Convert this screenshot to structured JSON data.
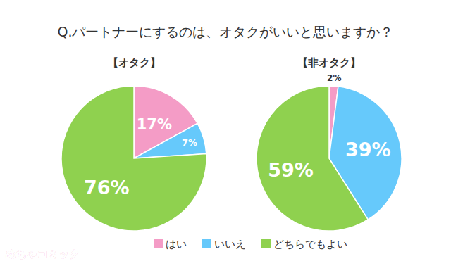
{
  "chart_data": {
    "type": "pie",
    "title": "Q.パートナーにするのは、オタクがいいと思いますか？",
    "categories": [
      "はい",
      "いいえ",
      "どちらでもよい"
    ],
    "colors": [
      "#f49cc6",
      "#66c9fb",
      "#8fd14f"
    ],
    "series": [
      {
        "name": "【オタク】",
        "values": [
          17,
          7,
          76
        ],
        "value_labels": [
          "17%",
          "7%",
          "76%"
        ]
      },
      {
        "name": "【非オタク】",
        "values": [
          2,
          39,
          59
        ],
        "value_labels": [
          "2%",
          "39%",
          "59%"
        ]
      }
    ],
    "data_labels": true,
    "legend": "bottom",
    "annotations": [
      "めちゃコミック"
    ]
  }
}
